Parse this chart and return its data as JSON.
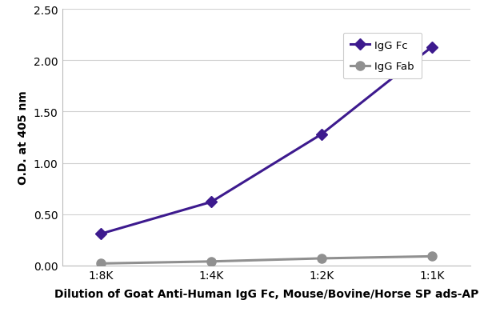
{
  "x_labels": [
    "1:8K",
    "1:4K",
    "1:2K",
    "1:1K"
  ],
  "x_positions": [
    0,
    1,
    2,
    3
  ],
  "igg_fc_values": [
    0.31,
    0.62,
    1.28,
    2.13
  ],
  "igg_fab_values": [
    0.02,
    0.04,
    0.07,
    0.09
  ],
  "igg_fc_color": "#3d1a8e",
  "igg_fab_color": "#909090",
  "igg_fc_label": "IgG Fc",
  "igg_fab_label": "IgG Fab",
  "ylabel": "O.D. at 405 nm",
  "xlabel": "Dilution of Goat Anti-Human IgG Fc, Mouse/Bovine/Horse SP ads-AP",
  "ylim": [
    0.0,
    2.5
  ],
  "yticks": [
    0.0,
    0.5,
    1.0,
    1.5,
    2.0,
    2.5
  ],
  "marker_fc": "D",
  "marker_fab": "o",
  "linewidth": 2.2,
  "markersize_fc": 7,
  "markersize_fab": 8,
  "background_color": "#ffffff",
  "grid_color": "#d0d0d0",
  "legend_fontsize": 9.5,
  "axis_label_fontsize": 10,
  "tick_fontsize": 10
}
